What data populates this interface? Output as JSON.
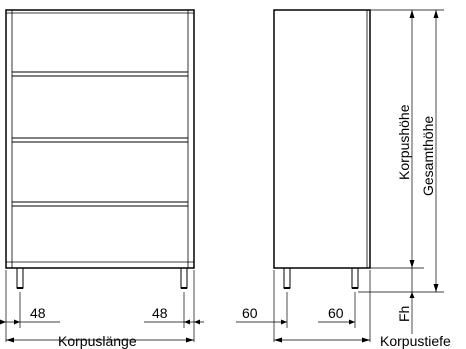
{
  "dimensions": {
    "front_left_inset": "48",
    "front_right_inset": "48",
    "front_width": "Korpuslänge",
    "side_front_inset": "60",
    "side_rear_inset": "60",
    "side_depth": "Korpustiefe",
    "body_height": "Korpushöhe",
    "total_height": "Gesamthöhe",
    "foot_height": "Fh"
  },
  "colors": {
    "line": "#000000",
    "fill": "#ffffff"
  }
}
